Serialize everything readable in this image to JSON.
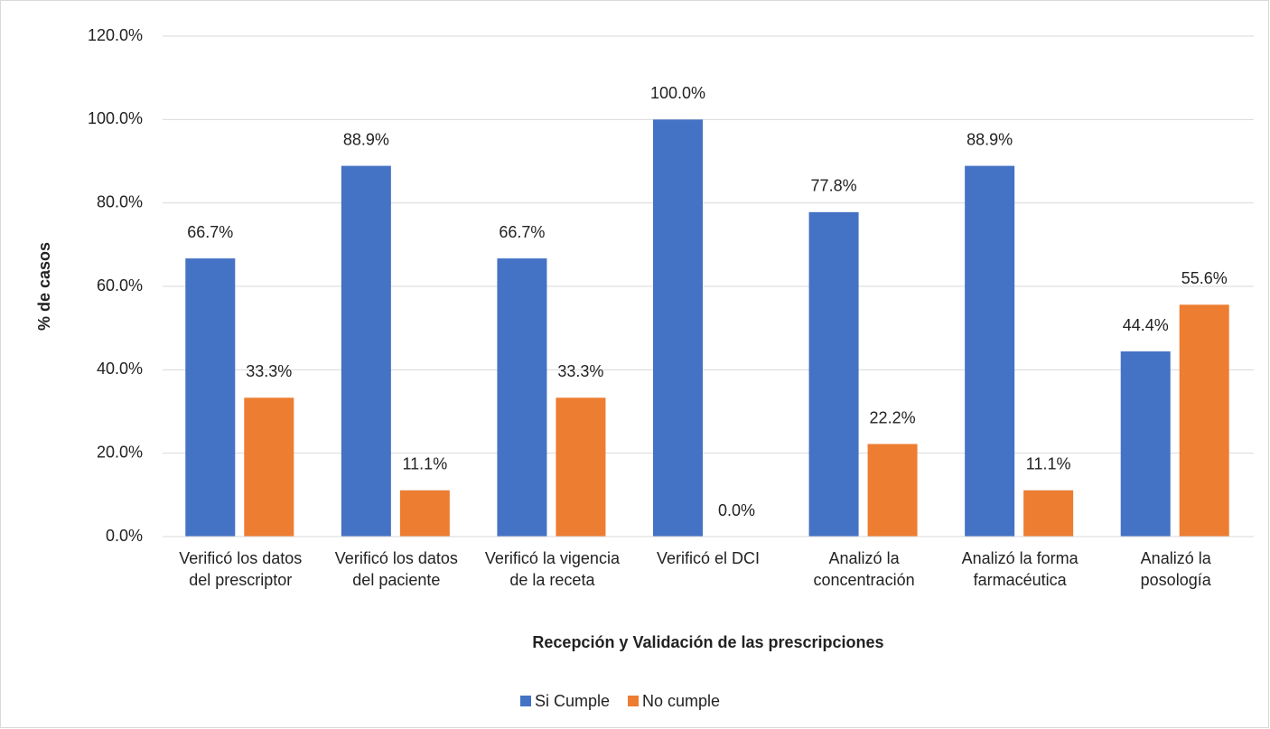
{
  "chart_data": {
    "type": "bar",
    "x_label": "Recepción y Validación de las prescripciones",
    "y_label": "% de casos",
    "categories": [
      "Verificó los datos del prescriptor",
      "Verificó los datos del paciente",
      "Verificó la vigencia de la receta",
      "Verificó el DCI",
      "Analizó la concentración",
      "Analizó la forma farmacéutica",
      "Analizó la posología"
    ],
    "series": [
      {
        "name": "Si Cumple",
        "color": "#4472c4",
        "values": [
          66.7,
          88.9,
          66.7,
          100.0,
          77.8,
          88.9,
          44.4
        ],
        "value_labels": [
          "66.7%",
          "88.9%",
          "66.7%",
          "100.0%",
          "77.8%",
          "88.9%",
          "44.4%"
        ]
      },
      {
        "name": "No cumple",
        "color": "#ed7d31",
        "values": [
          33.3,
          11.1,
          33.3,
          0.0,
          22.2,
          11.1,
          55.6
        ],
        "value_labels": [
          "33.3%",
          "11.1%",
          "33.3%",
          "0.0%",
          "22.2%",
          "11.1%",
          "55.6%"
        ]
      }
    ],
    "ylim": [
      0,
      120
    ],
    "yticks": [
      {
        "value": 0,
        "label": "0.0%"
      },
      {
        "value": 20,
        "label": "20.0%"
      },
      {
        "value": 40,
        "label": "40.0%"
      },
      {
        "value": 60,
        "label": "60.0%"
      },
      {
        "value": 80,
        "label": "80.0%"
      },
      {
        "value": 100,
        "label": "100.0%"
      },
      {
        "value": 120,
        "label": "120.0%"
      }
    ],
    "grid": true,
    "legend": "bottom"
  }
}
